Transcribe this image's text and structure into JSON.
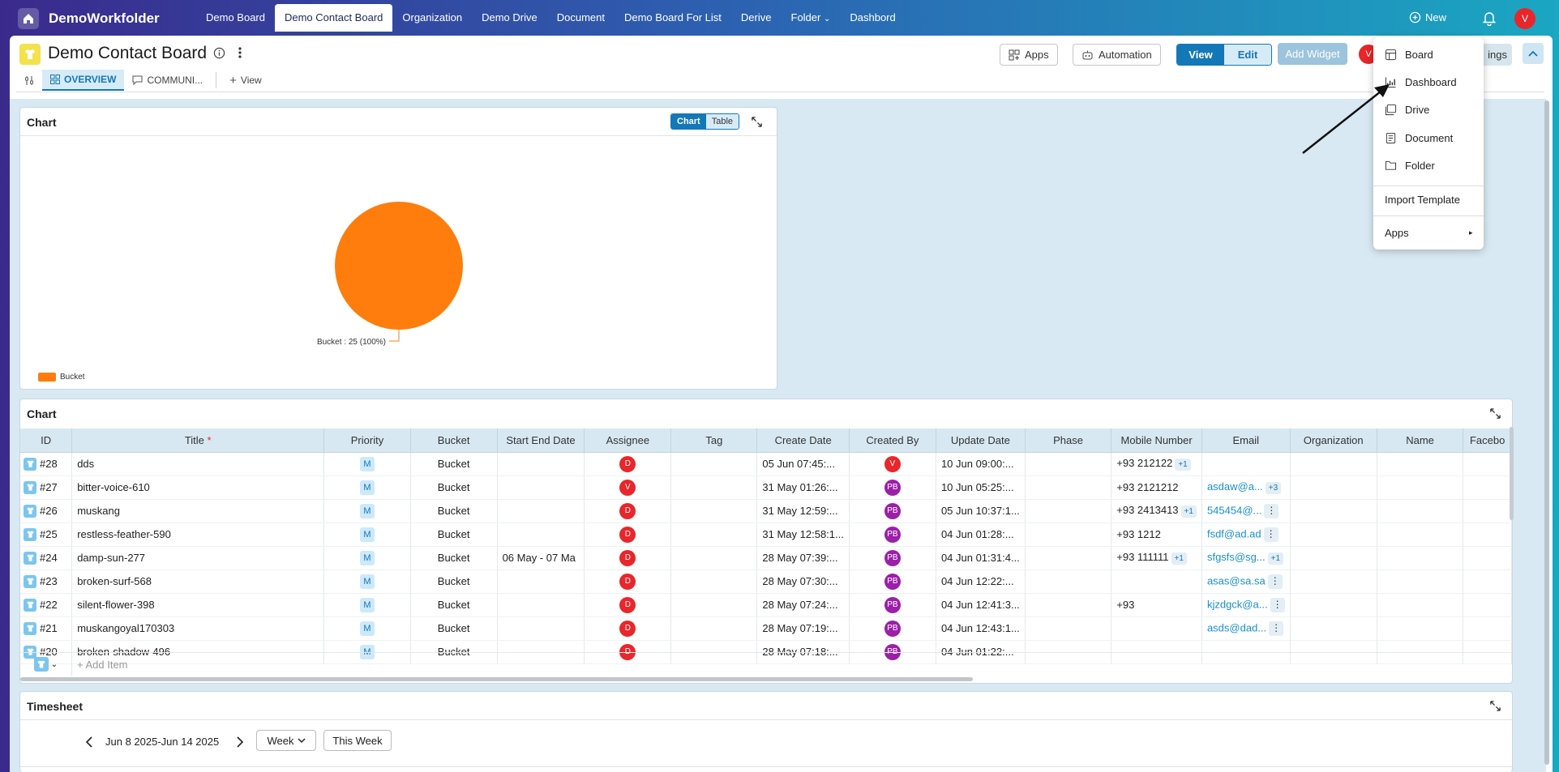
{
  "app": {
    "brand": "DemoWorkfolder",
    "new_label": "New",
    "user_initial": "V"
  },
  "nav": [
    "Demo Board",
    "Demo Contact Board",
    "Organization",
    "Demo Drive",
    "Document",
    "Demo Board For List",
    "Derive",
    "Folder",
    "Dashbord"
  ],
  "header": {
    "title": "Demo Contact Board",
    "apps_label": "Apps",
    "automation_label": "Automation",
    "view_label": "View",
    "edit_label": "Edit",
    "add_widget_label": "Add Widget",
    "settings_label": "ings",
    "member_initial": "V"
  },
  "tabs": {
    "overview": "OVERVIEW",
    "communication": "COMMUNI...",
    "add_view": "View"
  },
  "chart_card": {
    "title": "Chart",
    "chart_toggle": "Chart",
    "table_toggle": "Table",
    "slice_label": "Bucket : 25 (100%)",
    "legend": "Bucket"
  },
  "chart_data": {
    "type": "pie",
    "categories": [
      "Bucket"
    ],
    "values": [
      25
    ],
    "title": "Chart",
    "legend_position": "bottom-left",
    "colors": [
      "#ff7d0c"
    ]
  },
  "table_card": {
    "title": "Chart",
    "add_item": "+ Add Item",
    "columns": [
      "ID",
      "Title",
      "Priority",
      "Bucket",
      "Start End Date",
      "Assignee",
      "Tag",
      "Create Date",
      "Created By",
      "Update Date",
      "Phase",
      "Mobile Number",
      "Email",
      "Organization",
      "Name",
      "Facebo"
    ],
    "rows": [
      {
        "id": "#28",
        "title": "dds",
        "priority": "M",
        "bucket": "Bucket",
        "dates": "",
        "assignee": "D",
        "create": "05 Jun 07:45:...",
        "by": "V",
        "update": "10 Jun 09:00:...",
        "mobile": "+93 212122",
        "mobile_more": "+1",
        "email": "",
        "email_more": ""
      },
      {
        "id": "#27",
        "title": "bitter-voice-610",
        "priority": "M",
        "bucket": "Bucket",
        "dates": "",
        "assignee": "V",
        "create": "31 May 01:26:...",
        "by": "PB",
        "update": "10 Jun 05:25:...",
        "mobile": "+93 2121212",
        "mobile_more": "",
        "email": "asdaw@a...",
        "email_more": "+3"
      },
      {
        "id": "#26",
        "title": "muskang",
        "priority": "M",
        "bucket": "Bucket",
        "dates": "",
        "assignee": "D",
        "create": "31 May 12:59:...",
        "by": "PB",
        "update": "05 Jun 10:37:1...",
        "mobile": "+93 2413413",
        "mobile_more": "+1",
        "email": "545454@...",
        "email_more": "⋮"
      },
      {
        "id": "#25",
        "title": "restless-feather-590",
        "priority": "M",
        "bucket": "Bucket",
        "dates": "",
        "assignee": "D",
        "create": "31 May 12:58:1...",
        "by": "PB",
        "update": "04 Jun 01:28:...",
        "mobile": "+93 1212",
        "mobile_more": "",
        "email": "fsdf@ad.ad",
        "email_more": "⋮"
      },
      {
        "id": "#24",
        "title": "damp-sun-277",
        "priority": "M",
        "bucket": "Bucket",
        "dates": "06 May  -  07 Ma",
        "assignee": "D",
        "create": "28 May 07:39:...",
        "by": "PB",
        "update": "04 Jun 01:31:4...",
        "mobile": "+93 111111",
        "mobile_more": "+1",
        "email": "sfgsfs@sg...",
        "email_more": "+1"
      },
      {
        "id": "#23",
        "title": "broken-surf-568",
        "priority": "M",
        "bucket": "Bucket",
        "dates": "",
        "assignee": "D",
        "create": "28 May 07:30:...",
        "by": "PB",
        "update": "04 Jun 12:22:...",
        "mobile": "",
        "mobile_more": "",
        "email": "asas@sa.sa",
        "email_more": "⋮"
      },
      {
        "id": "#22",
        "title": "silent-flower-398",
        "priority": "M",
        "bucket": "Bucket",
        "dates": "",
        "assignee": "D",
        "create": "28 May 07:24:...",
        "by": "PB",
        "update": "04 Jun 12:41:3...",
        "mobile": "+93",
        "mobile_more": "",
        "email": "kjzdgck@a...",
        "email_more": "⋮"
      },
      {
        "id": "#21",
        "title": "muskangoyal170303",
        "priority": "M",
        "bucket": "Bucket",
        "dates": "",
        "assignee": "D",
        "create": "28 May 07:19:...",
        "by": "PB",
        "update": "04 Jun 12:43:1...",
        "mobile": "",
        "mobile_more": "",
        "email": "asds@dad...",
        "email_more": "⋮"
      },
      {
        "id": "#20",
        "title": "broken-shadow-496",
        "priority": "M",
        "bucket": "Bucket",
        "dates": "",
        "assignee": "D",
        "create": "28 May 07:18:...",
        "by": "PB",
        "update": "04 Jun 01:22:...",
        "mobile": "",
        "mobile_more": "",
        "email": "",
        "email_more": ""
      }
    ]
  },
  "timesheet": {
    "title": "Timesheet",
    "range": "Jun 8 2025-Jun 14 2025",
    "period": "Week",
    "this_week": "This Week"
  },
  "new_menu": {
    "items": [
      "Board",
      "Dashboard",
      "Drive",
      "Document",
      "Folder"
    ],
    "import": "Import Template",
    "apps": "Apps"
  }
}
